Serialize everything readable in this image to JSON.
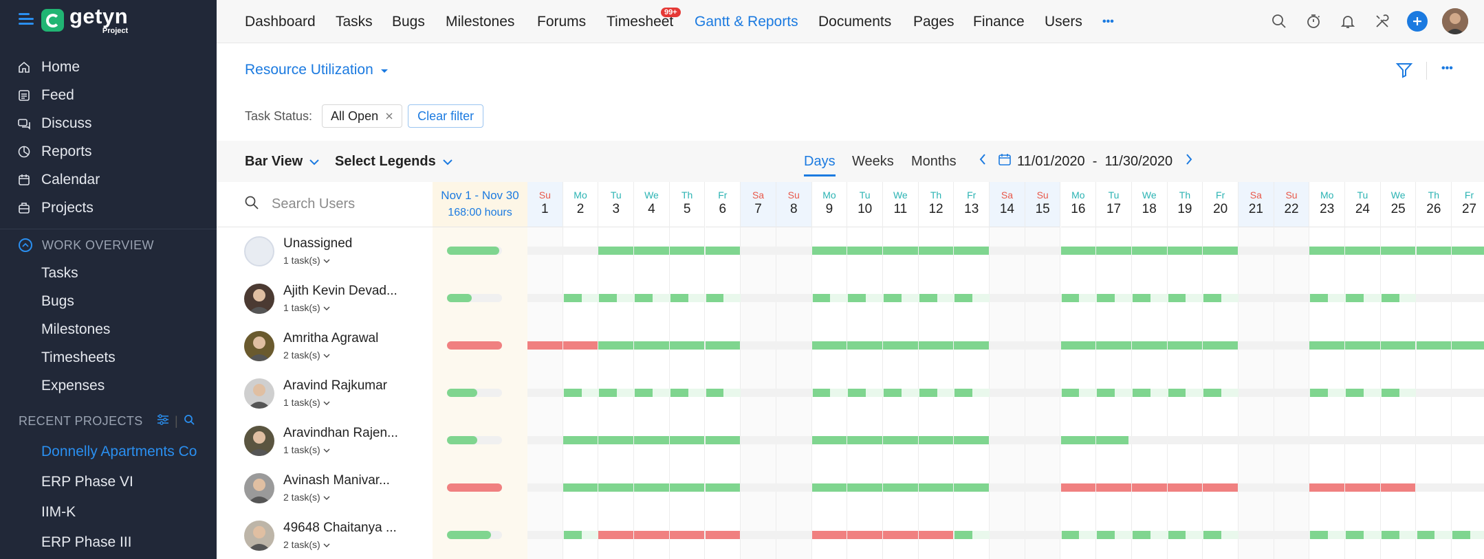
{
  "app": {
    "logo_name": "getyn",
    "logo_sub": "Project"
  },
  "sidebar": {
    "items": [
      {
        "label": "Home",
        "icon": "home-icon"
      },
      {
        "label": "Feed",
        "icon": "feed-icon"
      },
      {
        "label": "Discuss",
        "icon": "discuss-icon"
      },
      {
        "label": "Reports",
        "icon": "reports-icon"
      },
      {
        "label": "Calendar",
        "icon": "calendar-icon"
      },
      {
        "label": "Projects",
        "icon": "projects-icon"
      }
    ],
    "work_overview": {
      "title": "WORK OVERVIEW",
      "items": [
        "Tasks",
        "Bugs",
        "Milestones",
        "Timesheets",
        "Expenses"
      ]
    },
    "recent_projects": {
      "title": "RECENT PROJECTS",
      "items": [
        "Donnelly Apartments Co",
        "ERP Phase VI",
        "IIM-K",
        "ERP Phase III"
      ]
    }
  },
  "topnav": {
    "items": [
      "Dashboard",
      "Tasks",
      "Bugs",
      "Milestones",
      "Forums",
      "Timesheet",
      "Gantt & Reports",
      "Documents",
      "Pages",
      "Finance",
      "Users"
    ],
    "timesheet_badge": "99+",
    "more": "•••"
  },
  "page": {
    "title": "Resource Utilization",
    "filter": {
      "label": "Task Status:",
      "chip": "All Open",
      "clear": "Clear filter"
    }
  },
  "toolbar": {
    "view": "Bar View",
    "legends": "Select Legends",
    "tabs": [
      "Days",
      "Weeks",
      "Months"
    ],
    "active_tab": "Days",
    "date_range": "11/01/2020  -  11/30/2020"
  },
  "grid": {
    "search_placeholder": "Search Users",
    "summary_range": "Nov 1 - Nov 30",
    "summary_hours": "168:00 hours",
    "days": [
      {
        "n": "Su",
        "d": "1",
        "we": true
      },
      {
        "n": "Mo",
        "d": "2"
      },
      {
        "n": "Tu",
        "d": "3"
      },
      {
        "n": "We",
        "d": "4"
      },
      {
        "n": "Th",
        "d": "5"
      },
      {
        "n": "Fr",
        "d": "6"
      },
      {
        "n": "Sa",
        "d": "7",
        "we": true
      },
      {
        "n": "Su",
        "d": "8",
        "we": true
      },
      {
        "n": "Mo",
        "d": "9"
      },
      {
        "n": "Tu",
        "d": "10"
      },
      {
        "n": "We",
        "d": "11"
      },
      {
        "n": "Th",
        "d": "12"
      },
      {
        "n": "Fr",
        "d": "13"
      },
      {
        "n": "Sa",
        "d": "14",
        "we": true
      },
      {
        "n": "Su",
        "d": "15",
        "we": true
      },
      {
        "n": "Mo",
        "d": "16"
      },
      {
        "n": "Tu",
        "d": "17"
      },
      {
        "n": "We",
        "d": "18"
      },
      {
        "n": "Th",
        "d": "19"
      },
      {
        "n": "Fr",
        "d": "20"
      },
      {
        "n": "Sa",
        "d": "21",
        "we": true
      },
      {
        "n": "Su",
        "d": "22",
        "we": true
      },
      {
        "n": "Mo",
        "d": "23"
      },
      {
        "n": "Tu",
        "d": "24"
      },
      {
        "n": "We",
        "d": "25"
      },
      {
        "n": "Th",
        "d": "26"
      },
      {
        "n": "Fr",
        "d": "27"
      }
    ],
    "users": [
      {
        "name": "Unassigned",
        "tasks": "1 task(s)",
        "sum": "green",
        "sum_fill": 0.95,
        "avatar": "#e8ecf2",
        "days": [
          "",
          "",
          "g",
          "g",
          "g",
          "g",
          "",
          "",
          "g",
          "g",
          "g",
          "g",
          "g",
          "",
          "",
          "g",
          "g",
          "g",
          "g",
          "g",
          "",
          "",
          "g",
          "g",
          "g",
          "g",
          "g"
        ]
      },
      {
        "name": "Ajith Kevin Devad...",
        "tasks": "1 task(s)",
        "sum": "green",
        "sum_fill": 0.45,
        "avatar": "#4b3a32",
        "days": [
          "",
          "gs",
          "gs",
          "gs",
          "gs",
          "gs",
          "",
          "",
          "gs",
          "gs",
          "gs",
          "gs",
          "gs",
          "",
          "",
          "gs",
          "gs",
          "gs",
          "gs",
          "gs",
          "",
          "",
          "gs",
          "gs",
          "gs",
          "",
          ""
        ]
      },
      {
        "name": "Amritha Agrawal",
        "tasks": "2 task(s)",
        "sum": "red",
        "sum_fill": 1,
        "avatar": "#6a5a2e",
        "days": [
          "r",
          "r",
          "g",
          "g",
          "g",
          "g",
          "",
          "",
          "g",
          "g",
          "g",
          "g",
          "g",
          "",
          "",
          "g",
          "g",
          "g",
          "g",
          "g",
          "",
          "",
          "g",
          "g",
          "g",
          "g",
          "g"
        ]
      },
      {
        "name": "Aravind Rajkumar",
        "tasks": "1 task(s)",
        "sum": "green",
        "sum_fill": 0.55,
        "avatar": "#cfcfcf",
        "days": [
          "",
          "gs",
          "gs",
          "gs",
          "gs",
          "gs",
          "",
          "",
          "gs",
          "gs",
          "gs",
          "gs",
          "gs",
          "",
          "",
          "gs",
          "gs",
          "gs",
          "gs",
          "gs",
          "",
          "",
          "gs",
          "gs",
          "gs",
          "",
          ""
        ]
      },
      {
        "name": "Aravindhan Rajen...",
        "tasks": "1 task(s)",
        "sum": "green",
        "sum_fill": 0.55,
        "avatar": "#5a5540",
        "days": [
          "",
          "g",
          "g",
          "g",
          "g",
          "g",
          "",
          "",
          "g",
          "g",
          "g",
          "g",
          "g",
          "",
          "",
          "g",
          "gh",
          "",
          "",
          "",
          "",
          "",
          "",
          "",
          "",
          "",
          ""
        ]
      },
      {
        "name": "Avinash Manivar...",
        "tasks": "2 task(s)",
        "sum": "red",
        "sum_fill": 1,
        "avatar": "#9a9a9a",
        "days": [
          "",
          "g",
          "g",
          "g",
          "g",
          "g",
          "",
          "",
          "g",
          "g",
          "g",
          "g",
          "g",
          "",
          "",
          "r",
          "r",
          "r",
          "r",
          "r",
          "",
          "",
          "r",
          "r",
          "r",
          "",
          ""
        ]
      },
      {
        "name": "49648 Chaitanya ...",
        "tasks": "2 task(s)",
        "sum": "green",
        "sum_fill": 0.8,
        "avatar": "#bdb5a8",
        "days": [
          "",
          "gs",
          "r",
          "r",
          "r",
          "r",
          "",
          "",
          "r",
          "r",
          "r",
          "r",
          "gs",
          "",
          "",
          "gs",
          "gs",
          "gs",
          "gs",
          "gs",
          "",
          "",
          "gs",
          "gs",
          "gs",
          "gs",
          "gs"
        ]
      }
    ]
  },
  "colors": {
    "accent": "#1b7ae0",
    "green": "#7fd58f",
    "red": "#f08080",
    "sidebar_bg": "#212838",
    "weekend": "#e8584a",
    "weekday": "#2ab3b3"
  }
}
